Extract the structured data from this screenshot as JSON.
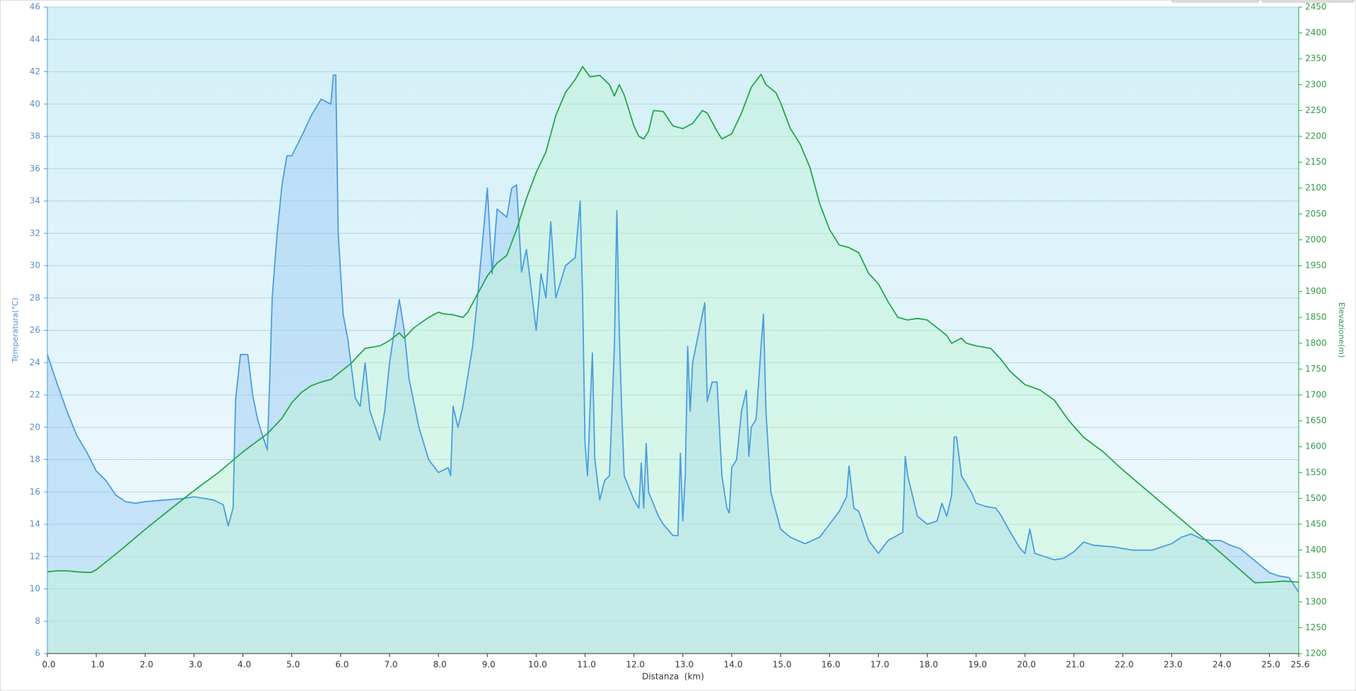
{
  "chart_data": {
    "type": "line",
    "xlabel": "Distanza  (km)",
    "ylabel": "Temperatura(°C)",
    "y2label": "Elevazione(m)",
    "xlim": [
      0,
      25.6
    ],
    "ylim": [
      6,
      46
    ],
    "y2lim": [
      1200,
      2450
    ],
    "grid": true,
    "xticks": [
      {
        "value": 0,
        "label": "0.0"
      },
      {
        "value": 1,
        "label": "1.0"
      },
      {
        "value": 2,
        "label": "2.0"
      },
      {
        "value": 3,
        "label": "3.0"
      },
      {
        "value": 4,
        "label": "4.0"
      },
      {
        "value": 5,
        "label": "5.0"
      },
      {
        "value": 6,
        "label": "6.0"
      },
      {
        "value": 7,
        "label": "7.0"
      },
      {
        "value": 8,
        "label": "8.0"
      },
      {
        "value": 9,
        "label": "9.0"
      },
      {
        "value": 10,
        "label": "10.0"
      },
      {
        "value": 11,
        "label": "11.0"
      },
      {
        "value": 12,
        "label": "12.0"
      },
      {
        "value": 13,
        "label": "13.0"
      },
      {
        "value": 14,
        "label": "14.0"
      },
      {
        "value": 15,
        "label": "15.0"
      },
      {
        "value": 16,
        "label": "16.0"
      },
      {
        "value": 17,
        "label": "17.0"
      },
      {
        "value": 18,
        "label": "18.0"
      },
      {
        "value": 19,
        "label": "19.0"
      },
      {
        "value": 20,
        "label": "20.0"
      },
      {
        "value": 21,
        "label": "21.0"
      },
      {
        "value": 22,
        "label": "22.0"
      },
      {
        "value": 23,
        "label": "23.0"
      },
      {
        "value": 24,
        "label": "24.0"
      },
      {
        "value": 25,
        "label": "25.0"
      },
      25.6
    ],
    "yticks": [
      6,
      8,
      10,
      12,
      14,
      16,
      18,
      20,
      22,
      24,
      26,
      28,
      30,
      32,
      34,
      36,
      38,
      40,
      42,
      44,
      46
    ],
    "y2ticks": [
      1200,
      1250,
      1300,
      1350,
      1400,
      1450,
      1500,
      1550,
      1600,
      1650,
      1700,
      1750,
      1800,
      1850,
      1900,
      1950,
      2000,
      2050,
      2100,
      2150,
      2200,
      2250,
      2300,
      2350,
      2400,
      2450
    ],
    "series": [
      {
        "name": "Temperatura",
        "color": "#4a9de0",
        "fill": "rgba(150,200,245,0.45)",
        "x": [
          0,
          0.2,
          0.4,
          0.6,
          0.8,
          1.0,
          1.2,
          1.4,
          1.6,
          1.8,
          2.0,
          2.4,
          2.8,
          3.0,
          3.2,
          3.4,
          3.6,
          3.7,
          3.8,
          3.85,
          3.95,
          4.1,
          4.2,
          4.3,
          4.4,
          4.5,
          4.55,
          4.6,
          4.7,
          4.8,
          4.9,
          5.0,
          5.2,
          5.4,
          5.6,
          5.8,
          5.85,
          5.9,
          5.95,
          6.05,
          6.15,
          6.3,
          6.4,
          6.5,
          6.6,
          6.8,
          6.9,
          7.0,
          7.1,
          7.2,
          7.3,
          7.4,
          7.6,
          7.8,
          8.0,
          8.2,
          8.25,
          8.3,
          8.4,
          8.5,
          8.7,
          8.8,
          9.0,
          9.1,
          9.2,
          9.4,
          9.5,
          9.6,
          9.7,
          9.8,
          10.0,
          10.1,
          10.2,
          10.3,
          10.4,
          10.6,
          10.8,
          10.9,
          10.95,
          11.0,
          11.05,
          11.1,
          11.15,
          11.2,
          11.3,
          11.4,
          11.5,
          11.6,
          11.65,
          11.7,
          11.75,
          11.8,
          12.0,
          12.1,
          12.15,
          12.2,
          12.25,
          12.3,
          12.5,
          12.6,
          12.8,
          12.9,
          12.95,
          13.0,
          13.05,
          13.1,
          13.15,
          13.2,
          13.3,
          13.4,
          13.45,
          13.5,
          13.6,
          13.7,
          13.8,
          13.9,
          13.95,
          14.0,
          14.1,
          14.2,
          14.3,
          14.35,
          14.4,
          14.5,
          14.6,
          14.65,
          14.7,
          14.8,
          15.0,
          15.2,
          15.5,
          15.8,
          16.0,
          16.2,
          16.35,
          16.4,
          16.5,
          16.6,
          16.8,
          17.0,
          17.2,
          17.5,
          17.55,
          17.6,
          17.8,
          18.0,
          18.2,
          18.3,
          18.4,
          18.5,
          18.55,
          18.6,
          18.7,
          18.9,
          19.0,
          19.2,
          19.4,
          19.5,
          19.7,
          19.9,
          20.0,
          20.1,
          20.2,
          20.4,
          20.6,
          20.8,
          21.0,
          21.2,
          21.4,
          21.8,
          22.2,
          22.6,
          23.0,
          23.2,
          23.4,
          23.6,
          23.8,
          24.0,
          24.2,
          24.4,
          24.6,
          24.8,
          25.0,
          25.2,
          25.4,
          25.6
        ],
        "values": [
          24.5,
          22.7,
          21,
          19.5,
          18.5,
          17.3,
          16.7,
          15.8,
          15.4,
          15.3,
          15.4,
          15.5,
          15.6,
          15.7,
          15.6,
          15.5,
          15.2,
          13.9,
          15,
          21.7,
          24.5,
          24.5,
          22,
          20.5,
          19.5,
          18.6,
          23,
          28,
          32,
          35,
          36.8,
          36.8,
          38,
          39.3,
          40.3,
          40,
          41.8,
          41.8,
          32,
          27,
          25.4,
          21.8,
          21.3,
          24,
          21,
          19.2,
          21,
          24,
          26,
          27.9,
          26,
          23,
          20,
          18,
          17.2,
          17.5,
          17,
          21.3,
          20,
          21.3,
          25,
          28,
          34.8,
          29.5,
          33.5,
          33,
          34.8,
          35,
          29.6,
          31,
          26,
          29.5,
          28,
          32.7,
          28,
          30,
          30.5,
          34,
          28,
          19,
          17,
          21,
          24.6,
          18,
          15.5,
          16.7,
          17,
          25,
          33.4,
          26,
          21,
          17,
          15.5,
          15,
          17.8,
          15,
          19,
          16,
          14.5,
          14,
          13.3,
          13.3,
          18.4,
          14.2,
          17,
          25,
          21,
          24,
          25.5,
          27,
          27.7,
          21.6,
          22.8,
          22.8,
          17,
          15,
          14.7,
          17.5,
          18,
          21,
          22.3,
          18.2,
          20,
          20.5,
          25,
          27,
          21,
          16,
          13.7,
          13.2,
          12.8,
          13.2,
          14,
          14.8,
          15.7,
          17.6,
          15,
          14.8,
          13,
          12.2,
          13,
          13.5,
          18.2,
          17,
          14.5,
          14,
          14.2,
          15.3,
          14.5,
          15.8,
          19.4,
          19.4,
          17,
          16,
          15.3,
          15.1,
          15,
          14.6,
          13.5,
          12.5,
          12.2,
          13.7,
          12.2,
          12,
          11.8,
          11.9,
          12.3,
          12.9,
          12.7,
          12.6,
          12.4,
          12.4,
          12.8,
          13.2,
          13.4,
          13.1,
          13,
          13,
          12.7,
          12.5,
          12,
          11.5,
          11,
          10.8,
          10.7,
          9.8
        ]
      },
      {
        "name": "Elevazione",
        "color": "#22a845",
        "fill": "rgba(190,245,210,0.45)",
        "axis": "y2",
        "x": [
          0,
          0.2,
          0.4,
          0.6,
          0.8,
          0.9,
          1.0,
          1.5,
          2.0,
          2.5,
          3.0,
          3.5,
          4.0,
          4.5,
          4.8,
          5.0,
          5.2,
          5.4,
          5.6,
          5.8,
          6.0,
          6.2,
          6.5,
          6.8,
          7.0,
          7.2,
          7.3,
          7.5,
          7.8,
          8.0,
          8.1,
          8.3,
          8.5,
          8.6,
          8.8,
          9.0,
          9.2,
          9.4,
          9.6,
          9.8,
          10.0,
          10.2,
          10.4,
          10.6,
          10.8,
          10.95,
          11.1,
          11.3,
          11.5,
          11.6,
          11.7,
          11.8,
          12.0,
          12.1,
          12.2,
          12.3,
          12.4,
          12.6,
          12.8,
          13.0,
          13.2,
          13.4,
          13.5,
          13.7,
          13.8,
          14.0,
          14.2,
          14.4,
          14.6,
          14.7,
          14.9,
          15.0,
          15.2,
          15.4,
          15.6,
          15.8,
          16.0,
          16.2,
          16.4,
          16.6,
          16.8,
          17.0,
          17.2,
          17.4,
          17.6,
          17.8,
          18.0,
          18.2,
          18.4,
          18.5,
          18.7,
          18.8,
          19.0,
          19.3,
          19.5,
          19.7,
          20.0,
          20.3,
          20.6,
          20.9,
          21.2,
          21.6,
          22.0,
          22.5,
          23.0,
          23.5,
          24.0,
          24.4,
          24.7,
          25.0,
          25.3,
          25.6
        ],
        "values": [
          1358,
          1360,
          1360,
          1358,
          1357,
          1357,
          1362,
          1400,
          1440,
          1478,
          1515,
          1550,
          1590,
          1625,
          1655,
          1685,
          1705,
          1718,
          1725,
          1730,
          1745,
          1760,
          1790,
          1795,
          1805,
          1820,
          1810,
          1830,
          1850,
          1860,
          1857,
          1855,
          1850,
          1860,
          1895,
          1930,
          1955,
          1970,
          2020,
          2080,
          2130,
          2170,
          2240,
          2285,
          2310,
          2335,
          2315,
          2318,
          2300,
          2278,
          2300,
          2280,
          2220,
          2200,
          2195,
          2210,
          2250,
          2248,
          2220,
          2215,
          2225,
          2250,
          2245,
          2210,
          2195,
          2205,
          2245,
          2295,
          2320,
          2300,
          2285,
          2265,
          2215,
          2185,
          2140,
          2070,
          2020,
          1990,
          1985,
          1975,
          1935,
          1915,
          1880,
          1850,
          1845,
          1848,
          1845,
          1830,
          1815,
          1800,
          1810,
          1800,
          1795,
          1790,
          1770,
          1745,
          1720,
          1710,
          1690,
          1650,
          1618,
          1590,
          1555,
          1515,
          1475,
          1435,
          1395,
          1362,
          1337,
          1338,
          1340,
          1338
        ]
      }
    ]
  }
}
